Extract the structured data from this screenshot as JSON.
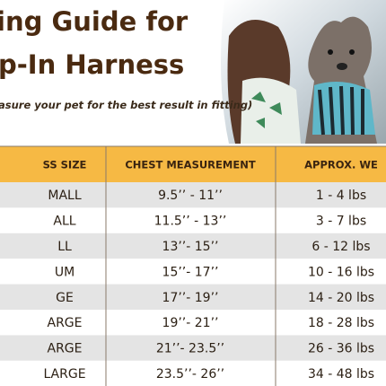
{
  "header": {
    "title_lines": [
      "ing Guide for",
      "p-In Harness"
    ],
    "subtitle": "asure your pet for the best result in fitting)"
  },
  "table": {
    "columns": [
      "SS SIZE",
      "CHEST MEASUREMENT",
      "APPROX. WE"
    ],
    "rows": [
      [
        "MALL",
        "9.5’’ -  11’’",
        "1 - 4 lbs"
      ],
      [
        "ALL",
        "11.5’’ - 13’’",
        "3 - 7 lbs"
      ],
      [
        "LL",
        "13’’- 15’’",
        "6 - 12 lbs"
      ],
      [
        "UM",
        "15’’- 17’’",
        "10 - 16 lbs"
      ],
      [
        "GE",
        "17’’- 19’’",
        "14 - 20 lbs"
      ],
      [
        "ARGE",
        "19’’- 21’’",
        "18 - 28 lbs"
      ],
      [
        "ARGE",
        "21’’- 23.5’’",
        "26 - 36 lbs"
      ],
      [
        "LARGE",
        "23.5’’- 26’’",
        "34 - 48 lbs"
      ]
    ]
  }
}
